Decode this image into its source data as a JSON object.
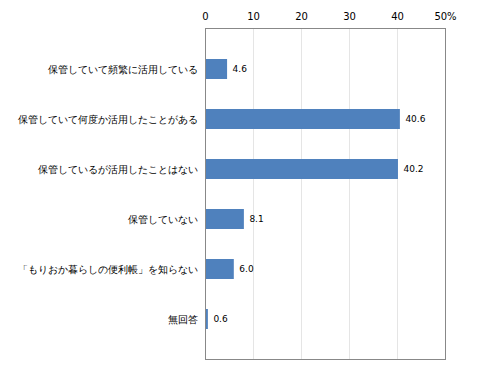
{
  "chart_data": {
    "type": "bar",
    "orientation": "horizontal",
    "categories": [
      "保管していて頻繁に活用している",
      "保管していて何度か活用したことがある",
      "保管しているが活用したことはない",
      "保管していない",
      "「もりおか暮らしの便利帳」を知らない",
      "無回答"
    ],
    "values": [
      4.6,
      40.6,
      40.2,
      8.1,
      6.0,
      0.6
    ],
    "value_labels": [
      "4.6",
      "40.6",
      "40.2",
      "8.1",
      "6.0",
      "0.6"
    ],
    "color": "#4f81bd",
    "xlim": [
      0,
      50
    ],
    "xticks": [
      0,
      10,
      20,
      30,
      40,
      {
        "value": 50,
        "label": "50%"
      }
    ],
    "grid": true,
    "data_labels": true
  }
}
